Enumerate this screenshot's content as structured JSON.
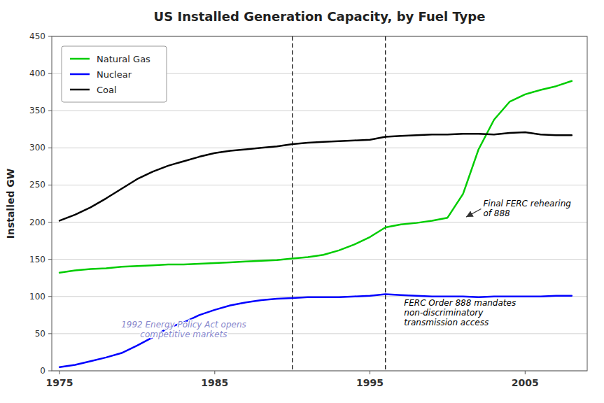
{
  "chart_data": {
    "type": "line",
    "title": "US Installed Generation Capacity, by Fuel Type",
    "y_label": "Installed GW",
    "x": [
      1975,
      1976,
      1977,
      1978,
      1979,
      1980,
      1981,
      1982,
      1983,
      1984,
      1985,
      1986,
      1987,
      1988,
      1989,
      1990,
      1991,
      1992,
      1993,
      1994,
      1995,
      1996,
      1997,
      1998,
      1999,
      2000,
      2001,
      2002,
      2003,
      2004,
      2005,
      2006,
      2007,
      2008
    ],
    "series": [
      {
        "name": "Natural Gas",
        "color": "#00cc00",
        "values": [
          132,
          135,
          137,
          138,
          140,
          141,
          142,
          143,
          143,
          144,
          145,
          146,
          147,
          148,
          149,
          151,
          153,
          156,
          162,
          170,
          180,
          193,
          197,
          199,
          202,
          206,
          238,
          298,
          338,
          362,
          372,
          378,
          383,
          390
        ]
      },
      {
        "name": "Nuclear",
        "color": "#0000ff",
        "values": [
          5,
          8,
          13,
          18,
          24,
          34,
          45,
          58,
          65,
          75,
          82,
          88,
          92,
          95,
          97,
          98,
          99,
          99,
          99,
          100,
          101,
          103,
          102,
          101,
          100,
          100,
          100,
          99,
          100,
          100,
          100,
          100,
          101,
          101
        ]
      },
      {
        "name": "Coal",
        "color": "#000000",
        "values": [
          202,
          210,
          220,
          232,
          245,
          258,
          268,
          276,
          282,
          288,
          293,
          296,
          298,
          300,
          302,
          305,
          307,
          308,
          309,
          310,
          311,
          315,
          316,
          317,
          318,
          318,
          319,
          319,
          318,
          320,
          321,
          318,
          317,
          317
        ]
      }
    ],
    "xlim": [
      1974.5,
      2009
    ],
    "ylim": [
      0,
      450
    ],
    "xticks": [
      1975,
      1985,
      1995,
      2005
    ],
    "yticks": [
      0,
      50,
      100,
      150,
      200,
      250,
      300,
      350,
      400,
      450
    ],
    "vlines": [
      1990,
      1996
    ],
    "annotations": [
      {
        "text": "1992 Energy Policy Act opens\ncompetitive markets",
        "x": 1983,
        "y": 42,
        "color": "#8888cc"
      },
      {
        "text": "FERC Order 888 mandates\nnon-discriminatory\ntransmission access",
        "x": 1997.2,
        "y": 58,
        "color": "#000000"
      },
      {
        "text": "Final FERC rehearing\nof 888",
        "x": 2002.3,
        "y": 218,
        "arrow_x": 2001.2,
        "arrow_y": 207,
        "color": "#000000"
      }
    ],
    "grid": true,
    "legend": "upper left"
  }
}
